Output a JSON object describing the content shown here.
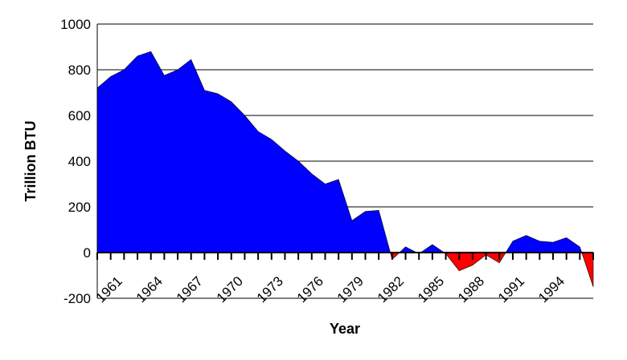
{
  "chart_data": {
    "type": "area",
    "title": "",
    "xlabel": "Year",
    "ylabel": "Trillion BTU",
    "xlim": [
      1960,
      1997
    ],
    "ylim": [
      -200,
      1000
    ],
    "y_ticks": [
      -200,
      0,
      200,
      400,
      600,
      800,
      1000
    ],
    "x_tick_labels": [
      "1961",
      "1964",
      "1967",
      "1970",
      "1973",
      "1976",
      "1979",
      "1982",
      "1985",
      "1988",
      "1991",
      "1994"
    ],
    "grid": "horizontal",
    "legend": "none",
    "colors": {
      "positive": "#0000ff",
      "negative": "#ff0000",
      "grid": "#000000",
      "background": "#ffffff"
    },
    "series": [
      {
        "x": [
          1960,
          1961,
          1962,
          1963,
          1964,
          1965,
          1966,
          1967,
          1968,
          1969,
          1970,
          1971,
          1972,
          1973,
          1974,
          1975,
          1976,
          1977,
          1978,
          1979,
          1980,
          1981,
          1982,
          1983,
          1984,
          1985,
          1986,
          1987,
          1988,
          1989,
          1990,
          1991,
          1992,
          1993,
          1994,
          1995,
          1996,
          1997
        ],
        "values": [
          720,
          770,
          800,
          860,
          880,
          775,
          800,
          845,
          710,
          695,
          660,
          600,
          530,
          495,
          445,
          400,
          345,
          300,
          320,
          140,
          180,
          185,
          -30,
          25,
          -5,
          35,
          -5,
          -80,
          -55,
          -10,
          -45,
          50,
          75,
          50,
          45,
          65,
          25,
          -150
        ]
      }
    ]
  }
}
